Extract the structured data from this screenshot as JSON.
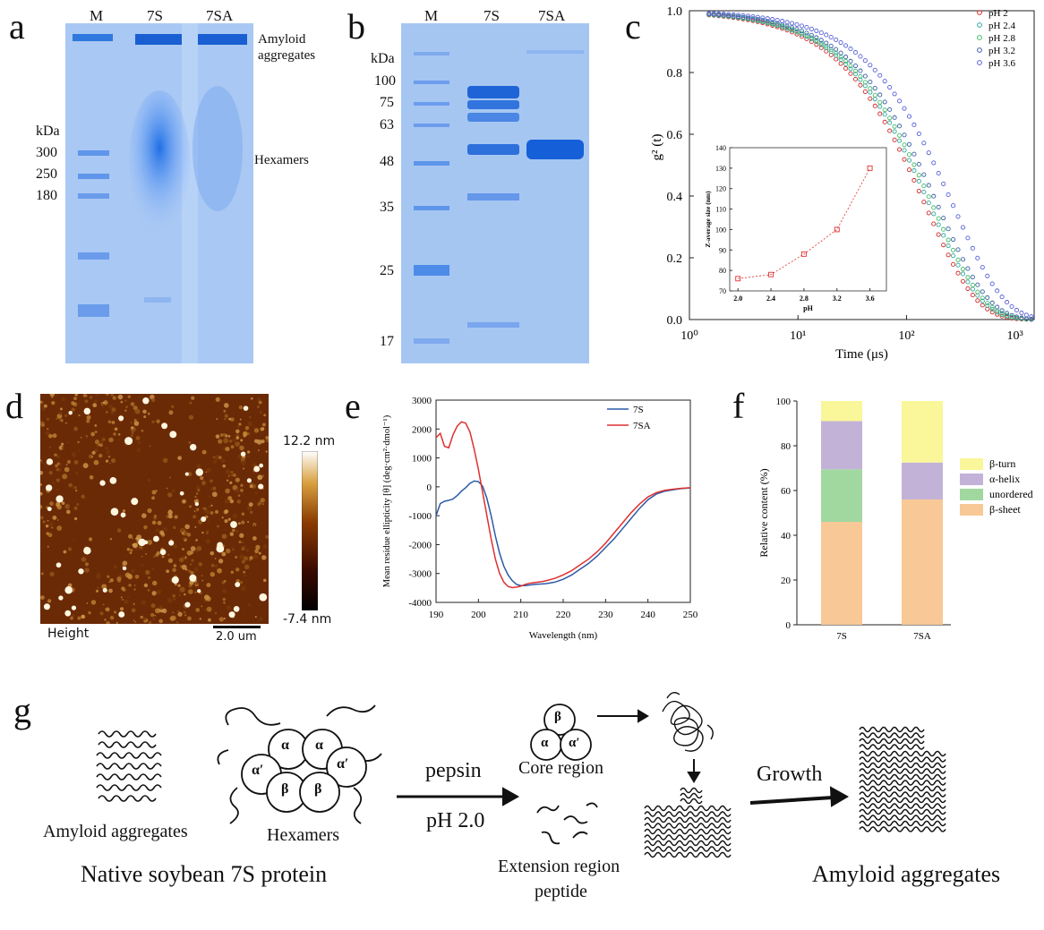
{
  "panels": {
    "a": {
      "label": "a",
      "lanes": [
        "M",
        "7S",
        "7SA"
      ],
      "kda_title": "kDa",
      "markers": [
        "300",
        "250",
        "180"
      ],
      "annot_top": [
        "Amyloid",
        "aggregates"
      ],
      "annot_mid": "Hexamers"
    },
    "b": {
      "label": "b",
      "lanes": [
        "M",
        "7S",
        "7SA"
      ],
      "kda_title": "kDa",
      "markers": [
        "100",
        "75",
        "63",
        "48",
        "35",
        "25",
        "17"
      ]
    },
    "c": {
      "label": "c",
      "xlabel": "Time (μs)",
      "ylabel": "g² (t)",
      "yticks": [
        "0.0",
        "0.2",
        "0.4",
        "0.6",
        "0.8",
        "1.0"
      ],
      "xticks": [
        "10⁰",
        "10¹",
        "10²",
        "10³"
      ],
      "legend": [
        "pH 2",
        "pH 2.4",
        "pH 2.8",
        "pH 3.2",
        "pH 3.6"
      ],
      "series_colors": [
        "#d62728",
        "#2ca9a0",
        "#44bb66",
        "#3a5fa8",
        "#5560d8"
      ],
      "inset": {
        "xlabel": "pH",
        "ylabel": "Z-average size (nm)",
        "xticks": [
          "2.0",
          "2.4",
          "2.8",
          "3.2",
          "3.6"
        ],
        "yticks": [
          "70",
          "80",
          "90",
          "100",
          "110",
          "120",
          "130",
          "140"
        ]
      }
    },
    "d": {
      "label": "d",
      "scale_max": "12.2 nm",
      "scale_min": "-7.4 nm",
      "channel": "Height",
      "scalebar": "2.0 um"
    },
    "e": {
      "label": "e",
      "xlabel": "Wavelength (nm)",
      "ylabel": "Mean residue ellipticity [θ] (deg·cm²·dmol⁻¹)",
      "xticks": [
        "190",
        "200",
        "210",
        "220",
        "230",
        "240",
        "250"
      ],
      "yticks": [
        "3000",
        "2000",
        "1000",
        "0",
        "-1000",
        "-2000",
        "-3000",
        "-4000"
      ],
      "legend": [
        "7S",
        "7SA"
      ],
      "colors": [
        "#2b5aa8",
        "#e03030"
      ]
    },
    "f": {
      "label": "f",
      "ylabel": "Relative content (%)",
      "yticks": [
        "0",
        "20",
        "40",
        "60",
        "80",
        "100"
      ],
      "legend": [
        "β-turn",
        "α-helix",
        "unordered",
        "β-sheet"
      ],
      "colors": {
        "beta_turn": "#faf69a",
        "alpha_helix": "#c2b2d8",
        "unordered": "#a0d8a0",
        "beta_sheet": "#f8c896"
      }
    },
    "g": {
      "label": "g",
      "amyloid_left": "Amyloid aggregates",
      "hexamers": "Hexamers",
      "native": "Native soybean 7S protein",
      "pepsin": "pepsin",
      "ph": "pH 2.0",
      "core": "Core region",
      "extension": [
        "Extension region",
        "peptide"
      ],
      "growth": "Growth",
      "amyloid_right": "Amyloid aggregates",
      "subunits": {
        "alpha": "α",
        "alpha_prime": "α′",
        "beta": "β"
      }
    }
  },
  "chart_data": [
    {
      "type": "scatter",
      "xlabel": "Time (μs)",
      "ylabel": "g² (t)",
      "xscale": "log",
      "xlim": [
        1,
        1500
      ],
      "ylim": [
        0,
        1.0
      ],
      "series": [
        {
          "name": "pH 2",
          "tau": 150,
          "beta": 1.55
        },
        {
          "name": "pH 2.4",
          "tau": 165,
          "beta": 1.55
        },
        {
          "name": "pH 2.8",
          "tau": 175,
          "beta": 1.55
        },
        {
          "name": "pH 3.2",
          "tau": 195,
          "beta": 1.55
        },
        {
          "name": "pH 3.6",
          "tau": 270,
          "beta": 1.55
        }
      ]
    },
    {
      "type": "line",
      "title": "",
      "xlabel": "pH",
      "ylabel": "Z-average size (nm)",
      "x": [
        2.0,
        2.4,
        2.8,
        3.2,
        3.6
      ],
      "y": [
        76,
        78,
        88,
        100,
        130
      ],
      "ylim": [
        70,
        140
      ]
    },
    {
      "type": "line",
      "xlabel": "Wavelength (nm)",
      "ylabel": "Mean residue ellipticity",
      "xlim": [
        190,
        250
      ],
      "ylim": [
        -4000,
        3000
      ],
      "series": [
        {
          "name": "7S",
          "x": [
            190,
            191,
            192,
            193,
            194,
            195,
            196,
            197,
            198,
            199,
            200,
            201,
            202,
            203,
            204,
            205,
            206,
            207,
            208,
            209,
            210,
            211,
            212,
            213,
            214,
            215,
            216,
            218,
            220,
            222,
            224,
            226,
            228,
            230,
            232,
            234,
            236,
            238,
            240,
            242,
            244,
            246,
            248,
            250
          ],
          "y": [
            -1000,
            -580,
            -500,
            -470,
            -420,
            -300,
            -150,
            -30,
            120,
            200,
            180,
            20,
            -400,
            -1000,
            -1700,
            -2300,
            -2750,
            -3050,
            -3250,
            -3380,
            -3420,
            -3420,
            -3400,
            -3380,
            -3370,
            -3360,
            -3350,
            -3300,
            -3200,
            -3050,
            -2850,
            -2650,
            -2400,
            -2100,
            -1800,
            -1450,
            -1100,
            -750,
            -450,
            -250,
            -150,
            -100,
            -60,
            -40
          ]
        },
        {
          "name": "7SA",
          "x": [
            190,
            191,
            192,
            193,
            194,
            195,
            196,
            197,
            198,
            199,
            200,
            201,
            202,
            203,
            204,
            205,
            206,
            207,
            208,
            209,
            210,
            211,
            212,
            213,
            214,
            215,
            216,
            218,
            220,
            222,
            224,
            226,
            228,
            230,
            232,
            234,
            236,
            238,
            240,
            242,
            244,
            246,
            248,
            250
          ],
          "y": [
            1700,
            1850,
            1400,
            1350,
            1800,
            2100,
            2250,
            2200,
            1900,
            1300,
            600,
            -200,
            -1000,
            -1800,
            -2500,
            -3000,
            -3300,
            -3450,
            -3490,
            -3470,
            -3440,
            -3380,
            -3340,
            -3320,
            -3300,
            -3280,
            -3250,
            -3170,
            -3050,
            -2900,
            -2700,
            -2500,
            -2250,
            -1950,
            -1600,
            -1250,
            -900,
            -600,
            -350,
            -200,
            -120,
            -80,
            -50,
            -30
          ]
        }
      ]
    },
    {
      "type": "bar",
      "stacked": true,
      "categories": [
        "7S",
        "7SA"
      ],
      "ylabel": "Relative content (%)",
      "ylim": [
        0,
        100
      ],
      "series": [
        {
          "name": "β-sheet",
          "values": [
            46,
            56
          ]
        },
        {
          "name": "unordered",
          "values": [
            23.5,
            0
          ]
        },
        {
          "name": "α-helix",
          "values": [
            21.5,
            16.5
          ]
        },
        {
          "name": "β-turn",
          "values": [
            9,
            27.5
          ]
        }
      ]
    }
  ]
}
